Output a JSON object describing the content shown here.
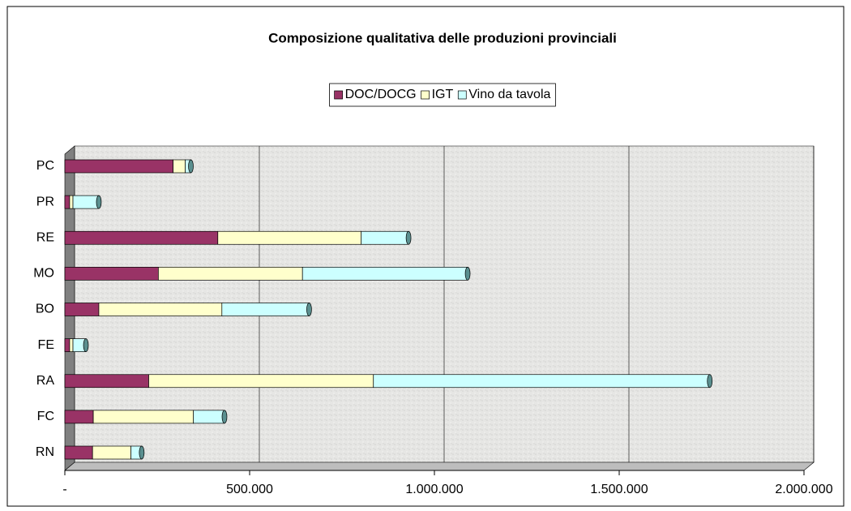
{
  "chart_data": {
    "type": "stacked-bar-horizontal",
    "title": "Composizione qualitativa delle produzioni provinciali",
    "categories": [
      "RN",
      "FC",
      "RA",
      "FE",
      "BO",
      "MO",
      "RE",
      "PR",
      "PC"
    ],
    "series": [
      {
        "name": "DOC/DOCG",
        "color": "#993366",
        "values": [
          75000,
          77000,
          227000,
          13000,
          92000,
          253000,
          414000,
          13000,
          293000
        ]
      },
      {
        "name": "IGT",
        "color": "#ffffcc",
        "values": [
          104000,
          271000,
          608000,
          9000,
          333000,
          390000,
          388000,
          9000,
          33000
        ]
      },
      {
        "name": "Vino da tavola",
        "color": "#ccffff",
        "values": [
          29000,
          84000,
          910000,
          35000,
          236000,
          447000,
          128000,
          70000,
          15000
        ]
      }
    ],
    "xlim": [
      0,
      2000000
    ],
    "xticks": [
      {
        "value": 0,
        "label": "-"
      },
      {
        "value": 500000,
        "label": "500.000"
      },
      {
        "value": 1000000,
        "label": "1.000.000"
      },
      {
        "value": 1500000,
        "label": "1.500.000"
      },
      {
        "value": 2000000,
        "label": "2.000.000"
      }
    ],
    "grid": true,
    "legend": "top"
  }
}
